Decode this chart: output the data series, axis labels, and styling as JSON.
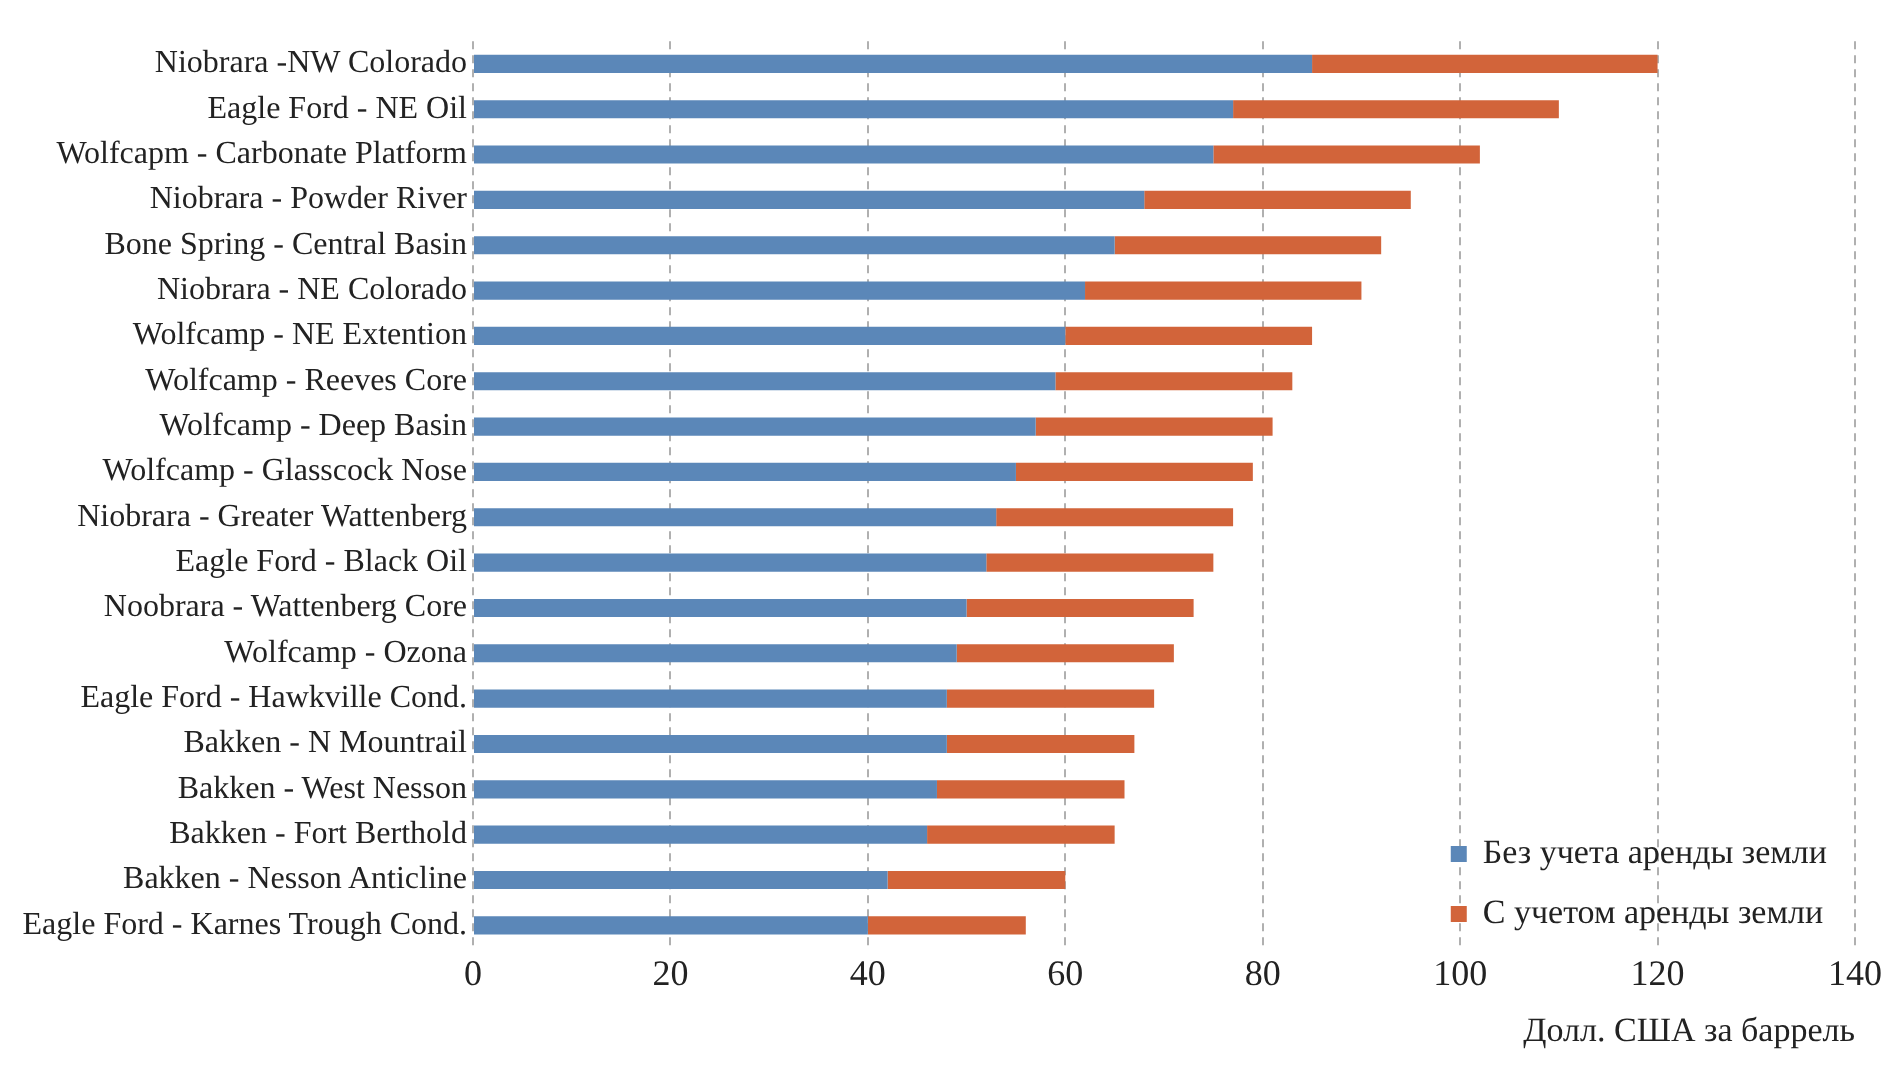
{
  "chart_data": {
    "type": "bar",
    "orientation": "horizontal",
    "stacked": true,
    "xlabel": "Долл. США за баррель",
    "categories": [
      "Niobrara -NW Colorado",
      "Eagle Ford - NE Oil",
      "Wolfcapm - Carbonate Platform",
      "Niobrara - Powder River",
      "Bone Spring - Central Basin",
      "Niobrara - NE Colorado",
      "Wolfcamp - NE Extention",
      "Wolfcamp - Reeves Core",
      "Wolfcamp - Deep Basin",
      "Wolfcamp - Glasscock Nose",
      "Niobrara - Greater Wattenberg",
      "Eagle Ford - Black Oil",
      "Noobrara - Wattenberg Core",
      "Wolfcamp - Ozona",
      "Eagle Ford - Hawkville Cond.",
      "Bakken - N Mountrail",
      "Bakken - West Nesson",
      "Bakken - Fort Berthold",
      "Bakken - Nesson Anticline",
      "Eagle Ford - Karnes Trough Cond."
    ],
    "series": [
      {
        "name": "Без учета аренды земли",
        "color": "#5b87b8",
        "values": [
          85,
          77,
          75,
          68,
          65,
          62,
          60,
          59,
          57,
          55,
          53,
          52,
          50,
          49,
          48,
          48,
          47,
          46,
          42,
          40
        ]
      },
      {
        "name": "С учетом аренды земли",
        "color": "#d2643a",
        "values": [
          35,
          33,
          27,
          27,
          27,
          28,
          25,
          24,
          24,
          24,
          24,
          23,
          23,
          22,
          21,
          19,
          19,
          19,
          18,
          16
        ]
      }
    ],
    "xlim": [
      0,
      140
    ],
    "xticks": [
      0,
      20,
      40,
      60,
      80,
      100,
      120,
      140
    ],
    "grid": "x",
    "legend": "bottom right"
  }
}
